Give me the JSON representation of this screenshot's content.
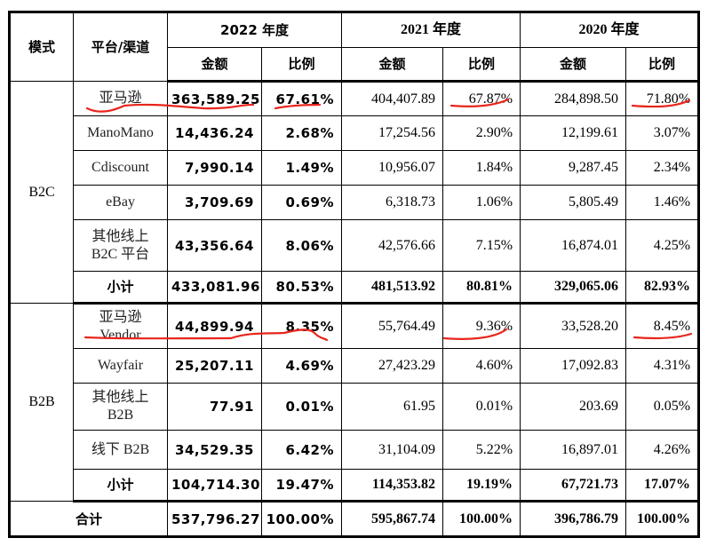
{
  "header": {
    "mode": "模式",
    "platform": "平台/渠道",
    "years": [
      "2022 年度",
      "2021 年度",
      "2020 年度"
    ],
    "amount": "金额",
    "ratio": "比例"
  },
  "sections": [
    {
      "mode": "B2C",
      "rows": [
        {
          "platform": "亚马逊",
          "v": [
            "363,589.25",
            "67.61%",
            "404,407.89",
            "67.87%",
            "284,898.50",
            "71.80%"
          ]
        },
        {
          "platform": "ManoMano",
          "v": [
            "14,436.24",
            "2.68%",
            "17,254.56",
            "2.90%",
            "12,199.61",
            "3.07%"
          ]
        },
        {
          "platform": "Cdiscount",
          "v": [
            "7,990.14",
            "1.49%",
            "10,956.07",
            "1.84%",
            "9,287.45",
            "2.34%"
          ]
        },
        {
          "platform": "eBay",
          "v": [
            "3,709.69",
            "0.69%",
            "6,318.73",
            "1.06%",
            "5,805.49",
            "1.46%"
          ]
        },
        {
          "platform": "其他线上 B2C 平台",
          "v": [
            "43,356.64",
            "8.06%",
            "42,576.66",
            "7.15%",
            "16,874.01",
            "4.25%"
          ]
        },
        {
          "platform": "小计",
          "v": [
            "433,081.96",
            "80.53%",
            "481,513.92",
            "80.81%",
            "329,065.06",
            "82.93%"
          ]
        }
      ]
    },
    {
      "mode": "B2B",
      "rows": [
        {
          "platform": "亚马逊 Vendor",
          "v": [
            "44,899.94",
            "8.35%",
            "55,764.49",
            "9.36%",
            "33,528.20",
            "8.45%"
          ]
        },
        {
          "platform": "Wayfair",
          "v": [
            "25,207.11",
            "4.69%",
            "27,423.29",
            "4.60%",
            "17,092.83",
            "4.31%"
          ]
        },
        {
          "platform": "其他线上 B2B",
          "v": [
            "77.91",
            "0.01%",
            "61.95",
            "0.01%",
            "203.69",
            "0.05%"
          ]
        },
        {
          "platform": "线下 B2B",
          "v": [
            "34,529.35",
            "6.42%",
            "31,104.09",
            "5.22%",
            "16,897.01",
            "4.26%"
          ]
        },
        {
          "platform": "小计",
          "v": [
            "104,714.30",
            "19.47%",
            "114,353.82",
            "19.19%",
            "67,721.73",
            "17.07%"
          ]
        }
      ]
    }
  ],
  "total": {
    "label": "合计",
    "v": [
      "537,796.27",
      "100.00%",
      "595,867.74",
      "100.00%",
      "396,786.79",
      "100.00%"
    ]
  },
  "annotation_color": "#e8251c"
}
